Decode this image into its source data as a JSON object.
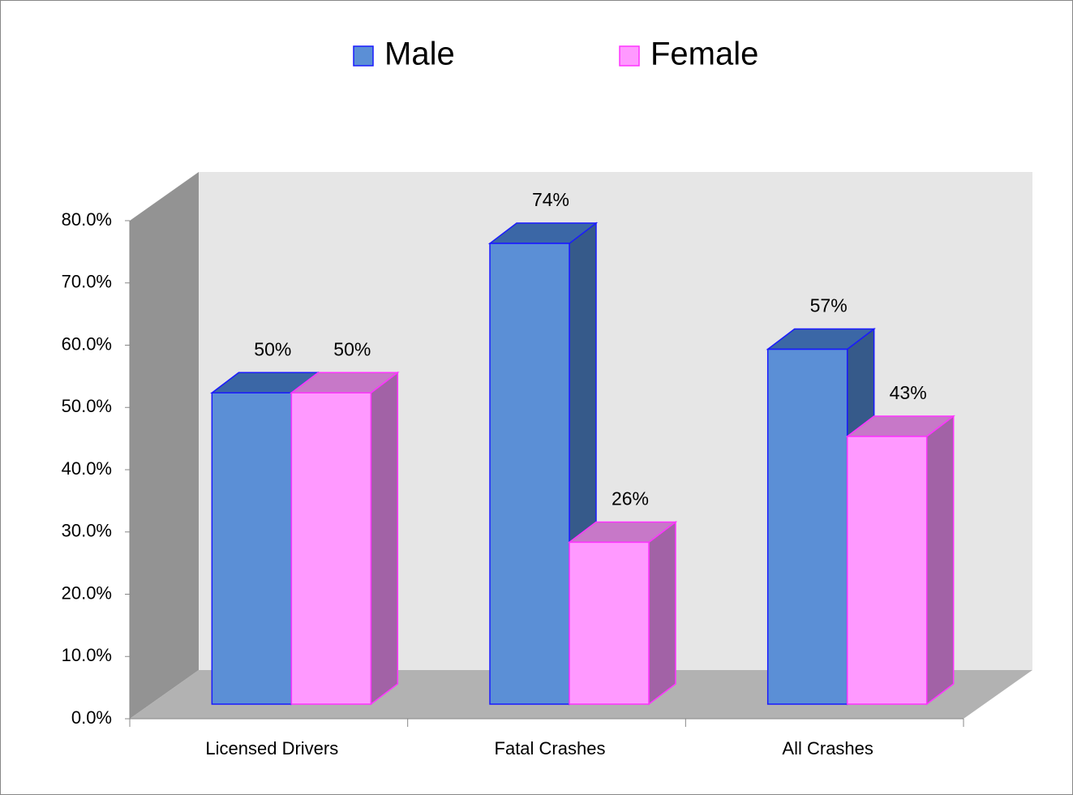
{
  "chart_data": {
    "type": "bar3d",
    "categories": [
      "Licensed Drivers",
      "Fatal Crashes",
      "All Crashes"
    ],
    "series": [
      {
        "name": "Male",
        "color": "#5b8fd6",
        "values": [
          50,
          74,
          57
        ],
        "value_labels": [
          "50%",
          "74%",
          "57%"
        ]
      },
      {
        "name": "Female",
        "color": "#ff99ff",
        "values": [
          50,
          26,
          43
        ],
        "value_labels": [
          "50%",
          "26%",
          "43%"
        ]
      }
    ],
    "ylim": [
      0,
      80
    ],
    "yticks": [
      {
        "value": 0,
        "label": "0.0%"
      },
      {
        "value": 10,
        "label": "10.0%"
      },
      {
        "value": 20,
        "label": "20.0%"
      },
      {
        "value": 30,
        "label": "30.0%"
      },
      {
        "value": 40,
        "label": "40.0%"
      },
      {
        "value": 50,
        "label": "50.0%"
      },
      {
        "value": 60,
        "label": "60.0%"
      },
      {
        "value": 70,
        "label": "70.0%"
      },
      {
        "value": 80,
        "label": "80.0%"
      }
    ],
    "legend": "top"
  }
}
